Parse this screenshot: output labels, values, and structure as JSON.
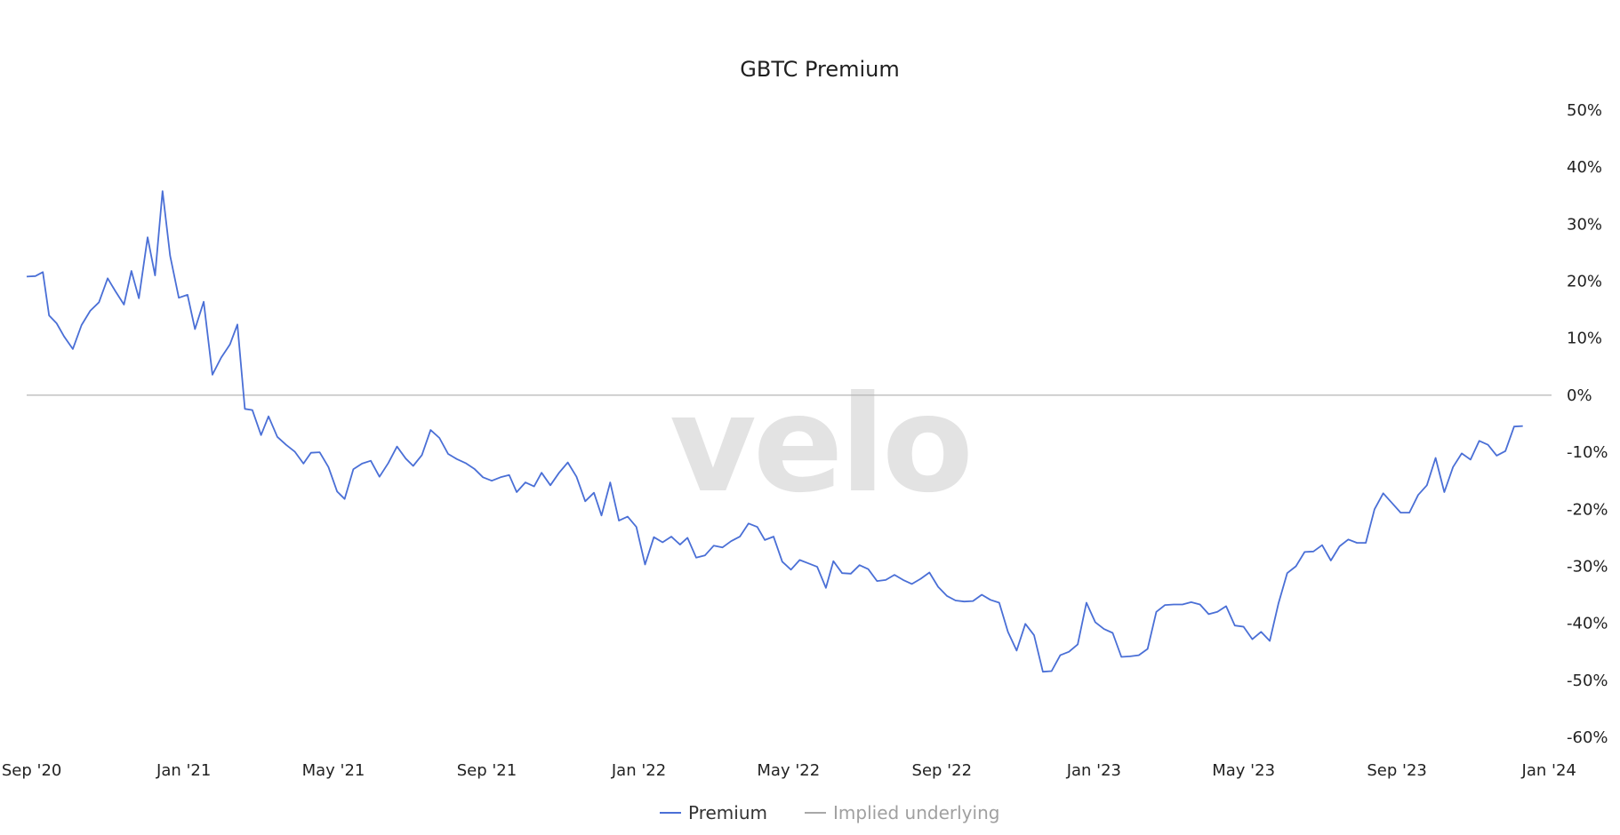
{
  "chart_data": {
    "type": "line",
    "title": "GBTC Premium",
    "watermark": "velo",
    "xlabel": "",
    "ylabel": "",
    "x_range": [
      "2020-08-28",
      "2024-01-03"
    ],
    "ylim": [
      -60,
      50
    ],
    "y_ticks": [
      50,
      40,
      30,
      20,
      10,
      0,
      -10,
      -20,
      -30,
      -40,
      -50,
      -60
    ],
    "y_tick_labels": [
      "50%",
      "40%",
      "30%",
      "20%",
      "10%",
      "0%",
      "-10%",
      "-20%",
      "-30%",
      "-40%",
      "-50%",
      "-60%"
    ],
    "x_ticks": [
      {
        "date": "2020-09-01",
        "label": "Sep '20"
      },
      {
        "date": "2021-01-01",
        "label": "Jan '21"
      },
      {
        "date": "2021-05-01",
        "label": "May '21"
      },
      {
        "date": "2021-09-01",
        "label": "Sep '21"
      },
      {
        "date": "2022-01-01",
        "label": "Jan '22"
      },
      {
        "date": "2022-05-01",
        "label": "May '22"
      },
      {
        "date": "2022-09-01",
        "label": "Sep '22"
      },
      {
        "date": "2023-01-01",
        "label": "Jan '23"
      },
      {
        "date": "2023-05-01",
        "label": "May '23"
      },
      {
        "date": "2023-09-01",
        "label": "Sep '23"
      },
      {
        "date": "2024-01-01",
        "label": "Jan '24"
      }
    ],
    "legend": {
      "placement": "bottom-center",
      "entries": [
        {
          "label": "Premium",
          "color": "#4a6fd6",
          "active": true
        },
        {
          "label": "Implied underlying",
          "color": "#a8a8a8",
          "active": false
        }
      ]
    },
    "zero_line_color": "#b5b5b5",
    "series": [
      {
        "name": "Premium",
        "color": "#4a6fd6",
        "points": [
          [
            "2020-08-28",
            20.8
          ],
          [
            "2020-09-04",
            20.9
          ],
          [
            "2020-09-10",
            21.6
          ],
          [
            "2020-09-15",
            14.0
          ],
          [
            "2020-09-21",
            12.6
          ],
          [
            "2020-09-27",
            10.3
          ],
          [
            "2020-10-04",
            8.1
          ],
          [
            "2020-10-11",
            12.3
          ],
          [
            "2020-10-18",
            14.8
          ],
          [
            "2020-10-25",
            16.3
          ],
          [
            "2020-11-01",
            20.5
          ],
          [
            "2020-11-07",
            18.3
          ],
          [
            "2020-11-14",
            15.9
          ],
          [
            "2020-11-20",
            21.8
          ],
          [
            "2020-11-26",
            17.0
          ],
          [
            "2020-12-03",
            27.7
          ],
          [
            "2020-12-09",
            21.0
          ],
          [
            "2020-12-15",
            35.8
          ],
          [
            "2020-12-21",
            24.5
          ],
          [
            "2020-12-28",
            17.1
          ],
          [
            "2021-01-04",
            17.6
          ],
          [
            "2021-01-10",
            11.6
          ],
          [
            "2021-01-17",
            16.4
          ],
          [
            "2021-01-24",
            3.6
          ],
          [
            "2021-01-31",
            6.6
          ],
          [
            "2021-02-07",
            8.9
          ],
          [
            "2021-02-13",
            12.4
          ],
          [
            "2021-02-19",
            -2.4
          ],
          [
            "2021-02-25",
            -2.6
          ],
          [
            "2021-03-04",
            -7.0
          ],
          [
            "2021-03-10",
            -3.7
          ],
          [
            "2021-03-17",
            -7.3
          ],
          [
            "2021-03-24",
            -8.7
          ],
          [
            "2021-03-31",
            -9.9
          ],
          [
            "2021-04-07",
            -12.0
          ],
          [
            "2021-04-13",
            -10.1
          ],
          [
            "2021-04-20",
            -10.0
          ],
          [
            "2021-04-27",
            -12.6
          ],
          [
            "2021-05-04",
            -16.9
          ],
          [
            "2021-05-10",
            -18.2
          ],
          [
            "2021-05-17",
            -13.0
          ],
          [
            "2021-05-24",
            -12.0
          ],
          [
            "2021-05-31",
            -11.5
          ],
          [
            "2021-06-07",
            -14.3
          ],
          [
            "2021-06-14",
            -11.9
          ],
          [
            "2021-06-21",
            -9.0
          ],
          [
            "2021-06-28",
            -11.1
          ],
          [
            "2021-07-04",
            -12.4
          ],
          [
            "2021-07-11",
            -10.5
          ],
          [
            "2021-07-18",
            -6.1
          ],
          [
            "2021-07-25",
            -7.5
          ],
          [
            "2021-08-01",
            -10.3
          ],
          [
            "2021-08-08",
            -11.2
          ],
          [
            "2021-08-15",
            -11.9
          ],
          [
            "2021-08-22",
            -12.9
          ],
          [
            "2021-08-29",
            -14.4
          ],
          [
            "2021-09-05",
            -15.0
          ],
          [
            "2021-09-12",
            -14.4
          ],
          [
            "2021-09-19",
            -14.0
          ],
          [
            "2021-09-25",
            -17.0
          ],
          [
            "2021-10-02",
            -15.3
          ],
          [
            "2021-10-09",
            -16.0
          ],
          [
            "2021-10-15",
            -13.6
          ],
          [
            "2021-10-22",
            -15.8
          ],
          [
            "2021-10-29",
            -13.6
          ],
          [
            "2021-11-05",
            -11.8
          ],
          [
            "2021-11-12",
            -14.3
          ],
          [
            "2021-11-19",
            -18.6
          ],
          [
            "2021-11-26",
            -17.1
          ],
          [
            "2021-12-02",
            -21.1
          ],
          [
            "2021-12-09",
            -15.3
          ],
          [
            "2021-12-16",
            -22.0
          ],
          [
            "2021-12-23",
            -21.3
          ],
          [
            "2021-12-30",
            -23.1
          ],
          [
            "2022-01-06",
            -29.7
          ],
          [
            "2022-01-13",
            -24.9
          ],
          [
            "2022-01-20",
            -25.8
          ],
          [
            "2022-01-27",
            -24.8
          ],
          [
            "2022-02-03",
            -26.2
          ],
          [
            "2022-02-09",
            -25.0
          ],
          [
            "2022-02-16",
            -28.5
          ],
          [
            "2022-02-23",
            -28.1
          ],
          [
            "2022-03-02",
            -26.4
          ],
          [
            "2022-03-09",
            -26.7
          ],
          [
            "2022-03-16",
            -25.6
          ],
          [
            "2022-03-23",
            -24.8
          ],
          [
            "2022-03-30",
            -22.5
          ],
          [
            "2022-04-06",
            -23.1
          ],
          [
            "2022-04-12",
            -25.4
          ],
          [
            "2022-04-19",
            -24.8
          ],
          [
            "2022-04-26",
            -29.2
          ],
          [
            "2022-05-03",
            -30.6
          ],
          [
            "2022-05-10",
            -28.9
          ],
          [
            "2022-05-17",
            -29.5
          ],
          [
            "2022-05-24",
            -30.1
          ],
          [
            "2022-05-31",
            -33.8
          ],
          [
            "2022-06-06",
            -29.1
          ],
          [
            "2022-06-13",
            -31.2
          ],
          [
            "2022-06-20",
            -31.3
          ],
          [
            "2022-06-27",
            -29.8
          ],
          [
            "2022-07-04",
            -30.5
          ],
          [
            "2022-07-11",
            -32.6
          ],
          [
            "2022-07-18",
            -32.4
          ],
          [
            "2022-07-25",
            -31.5
          ],
          [
            "2022-08-01",
            -32.4
          ],
          [
            "2022-08-08",
            -33.1
          ],
          [
            "2022-08-15",
            -32.2
          ],
          [
            "2022-08-22",
            -31.1
          ],
          [
            "2022-08-29",
            -33.6
          ],
          [
            "2022-09-05",
            -35.2
          ],
          [
            "2022-09-12",
            -36.0
          ],
          [
            "2022-09-19",
            -36.2
          ],
          [
            "2022-09-26",
            -36.1
          ],
          [
            "2022-10-03",
            -35.0
          ],
          [
            "2022-10-10",
            -35.9
          ],
          [
            "2022-10-17",
            -36.4
          ],
          [
            "2022-10-24",
            -41.5
          ],
          [
            "2022-10-31",
            -44.8
          ],
          [
            "2022-11-07",
            -40.1
          ],
          [
            "2022-11-14",
            -42.1
          ],
          [
            "2022-11-21",
            -48.5
          ],
          [
            "2022-11-28",
            -48.4
          ],
          [
            "2022-12-05",
            -45.6
          ],
          [
            "2022-12-12",
            -45.0
          ],
          [
            "2022-12-19",
            -43.7
          ],
          [
            "2022-12-26",
            -36.4
          ],
          [
            "2023-01-02",
            -39.8
          ],
          [
            "2023-01-09",
            -41.0
          ],
          [
            "2023-01-16",
            -41.7
          ],
          [
            "2023-01-23",
            -45.9
          ],
          [
            "2023-01-30",
            -45.8
          ],
          [
            "2023-02-06",
            -45.6
          ],
          [
            "2023-02-13",
            -44.5
          ],
          [
            "2023-02-20",
            -38.0
          ],
          [
            "2023-02-27",
            -36.8
          ],
          [
            "2023-03-06",
            -36.7
          ],
          [
            "2023-03-13",
            -36.7
          ],
          [
            "2023-03-20",
            -36.3
          ],
          [
            "2023-03-27",
            -36.7
          ],
          [
            "2023-04-03",
            -38.4
          ],
          [
            "2023-04-10",
            -38.0
          ],
          [
            "2023-04-17",
            -37.0
          ],
          [
            "2023-04-24",
            -40.4
          ],
          [
            "2023-05-01",
            -40.6
          ],
          [
            "2023-05-08",
            -42.8
          ],
          [
            "2023-05-15",
            -41.5
          ],
          [
            "2023-05-22",
            -43.1
          ],
          [
            "2023-05-29",
            -36.5
          ],
          [
            "2023-06-05",
            -31.2
          ],
          [
            "2023-06-12",
            -30.0
          ],
          [
            "2023-06-19",
            -27.5
          ],
          [
            "2023-06-26",
            -27.4
          ],
          [
            "2023-07-03",
            -26.3
          ],
          [
            "2023-07-10",
            -29.0
          ],
          [
            "2023-07-17",
            -26.5
          ],
          [
            "2023-07-24",
            -25.3
          ],
          [
            "2023-07-31",
            -25.9
          ],
          [
            "2023-08-07",
            -25.9
          ],
          [
            "2023-08-14",
            -20.0
          ],
          [
            "2023-08-21",
            -17.2
          ],
          [
            "2023-08-28",
            -18.9
          ],
          [
            "2023-09-04",
            -20.6
          ],
          [
            "2023-09-11",
            -20.6
          ],
          [
            "2023-09-18",
            -17.5
          ],
          [
            "2023-09-25",
            -15.8
          ],
          [
            "2023-10-02",
            -11.0
          ],
          [
            "2023-10-09",
            -17.0
          ],
          [
            "2023-10-16",
            -12.6
          ],
          [
            "2023-10-23",
            -10.2
          ],
          [
            "2023-10-30",
            -11.3
          ],
          [
            "2023-11-06",
            -8.0
          ],
          [
            "2023-11-13",
            -8.7
          ],
          [
            "2023-11-20",
            -10.6
          ],
          [
            "2023-11-27",
            -9.8
          ],
          [
            "2023-12-04",
            -5.5
          ],
          [
            "2023-12-11",
            -5.4
          ]
        ]
      }
    ]
  }
}
